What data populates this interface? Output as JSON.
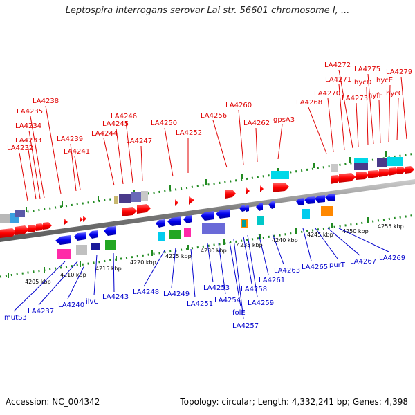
{
  "title": "Leptospira interrogans serovar Lai str. 56601 chromosome I, ...",
  "footer": {
    "accession": "Accession: NC_004342",
    "info": "Topology: circular; Length: 4,332,241 bp; Genes: 4,398"
  },
  "kbp_labels": [
    "4205 kbp",
    "4210 kbp",
    "4215 kbp",
    "4220 kbp",
    "4225 kbp",
    "4230 kbp",
    "4235 kbp",
    "4240 kbp",
    "4245 kbp",
    "4250 kbp",
    "4255 kbp"
  ],
  "top_labels": [
    "LA4232",
    "LA4233",
    "LA4234",
    "LA4235",
    "LA4238",
    "LA4239",
    "LA4241",
    "LA4244",
    "LA4245",
    "LA4246",
    "LA4247",
    "LA4250",
    "LA4252",
    "LA4256",
    "LA4260",
    "LA4262",
    "gpsA3",
    "LA4268",
    "LA4270",
    "LA4271",
    "LA4272",
    "LA4273",
    "hycD",
    "LA4275",
    "hyfF",
    "hycE",
    "hycG",
    "LA4279"
  ],
  "bottom_labels": [
    "mutS3",
    "LA4237",
    "LA4240",
    "ilvC",
    "LA4243",
    "LA4248",
    "LA4249",
    "LA4251",
    "LA4253",
    "LA4254",
    "folE",
    "LA4257",
    "LA4258",
    "LA4259",
    "LA4261",
    "LA4263",
    "LA4265",
    "purT",
    "LA4267",
    "LA4269"
  ],
  "colors": {
    "forward_gene": "#ff0000",
    "reverse_gene": "#0000ee",
    "top_label": "#e00000",
    "bottom_label": "#0000cc",
    "backbone": "#888888",
    "dots": "#228b22"
  }
}
